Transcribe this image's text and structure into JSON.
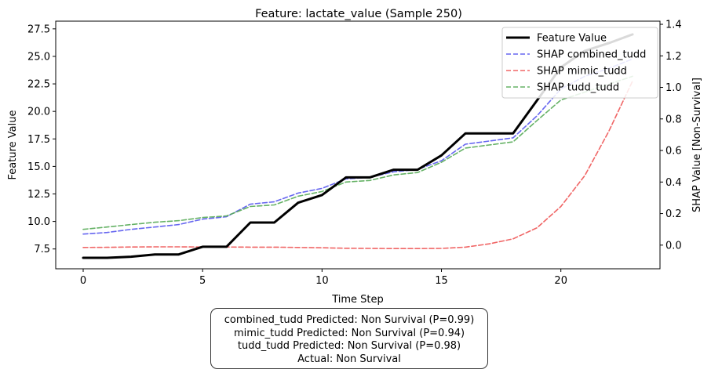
{
  "chart_data": {
    "type": "line",
    "title": "Feature: lactate_value (Sample 250)",
    "xlabel": "Time Step",
    "ylabel": "Feature Value",
    "y2label": "SHAP Value [Non-Survival]",
    "xlim": [
      -1.15,
      24.15
    ],
    "ylim": [
      5.7,
      28.2
    ],
    "y2lim": [
      -0.15,
      1.42
    ],
    "xticks": [
      0,
      5,
      10,
      15,
      20
    ],
    "yticks": [
      7.5,
      10.0,
      12.5,
      15.0,
      17.5,
      20.0,
      22.5,
      25.0,
      27.5
    ],
    "y2ticks": [
      0.0,
      0.2,
      0.4,
      0.6,
      0.8,
      1.0,
      1.2,
      1.4
    ],
    "grid": false,
    "legend_position": "top-right",
    "x": [
      0,
      1,
      2,
      3,
      4,
      5,
      6,
      7,
      8,
      9,
      10,
      11,
      12,
      13,
      14,
      15,
      16,
      17,
      18,
      19,
      20,
      21,
      22,
      23
    ],
    "series": [
      {
        "name": "Feature Value",
        "axis": "left",
        "color": "#000000",
        "style": "solid",
        "values": [
          6.7,
          6.7,
          6.8,
          7.0,
          7.0,
          7.7,
          7.7,
          9.9,
          9.9,
          11.7,
          12.4,
          14.0,
          14.0,
          14.7,
          14.7,
          16.0,
          18.0,
          18.0,
          18.0,
          21.0,
          24.0,
          25.5,
          26.2,
          27.0
        ]
      },
      {
        "name": "SHAP combined_tudd",
        "axis": "right",
        "color": "#5555ee",
        "style": "dashed",
        "values": [
          0.07,
          0.08,
          0.1,
          0.115,
          0.13,
          0.165,
          0.18,
          0.26,
          0.275,
          0.33,
          0.36,
          0.42,
          0.43,
          0.465,
          0.48,
          0.535,
          0.64,
          0.66,
          0.68,
          0.82,
          0.99,
          1.07,
          1.12,
          1.18
        ]
      },
      {
        "name": "SHAP mimic_tudd",
        "axis": "right",
        "color": "#ee5555",
        "style": "dashed",
        "values": [
          -0.015,
          -0.014,
          -0.012,
          -0.011,
          -0.011,
          -0.012,
          -0.012,
          -0.013,
          -0.013,
          -0.015,
          -0.017,
          -0.02,
          -0.021,
          -0.022,
          -0.022,
          -0.021,
          -0.013,
          0.008,
          0.04,
          0.11,
          0.245,
          0.44,
          0.72,
          1.04
        ]
      },
      {
        "name": "SHAP tudd_tudd",
        "axis": "right",
        "color": "#55aa55",
        "style": "dashed",
        "values": [
          0.1,
          0.115,
          0.13,
          0.145,
          0.155,
          0.175,
          0.185,
          0.245,
          0.255,
          0.31,
          0.34,
          0.4,
          0.41,
          0.445,
          0.46,
          0.525,
          0.615,
          0.635,
          0.655,
          0.79,
          0.92,
          0.97,
          1.02,
          1.07
        ]
      }
    ]
  },
  "summary": {
    "line1": "combined_tudd Predicted: Non Survival (P=0.99)",
    "line2": "mimic_tudd Predicted: Non Survival (P=0.94)",
    "line3": "tudd_tudd Predicted: Non Survival (P=0.98)",
    "line4": "Actual: Non Survival"
  }
}
